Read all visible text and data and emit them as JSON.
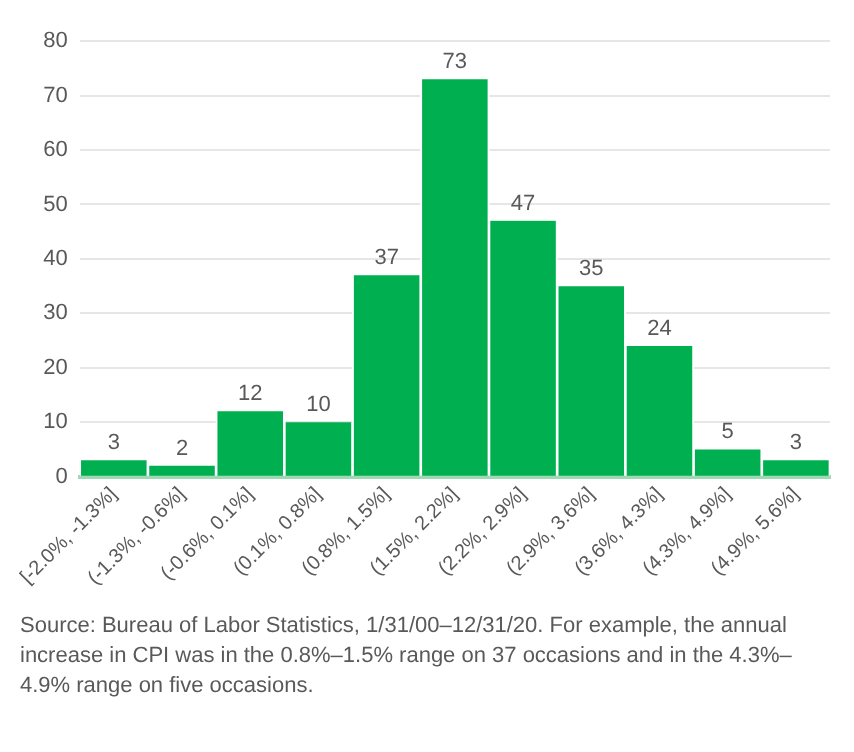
{
  "chart_data": {
    "type": "bar",
    "categories": [
      "[-2.0%, -1.3%]",
      "(-1.3%, -0.6%]",
      "(-0.6%, 0.1%]",
      "(0.1%, 0.8%]",
      "(0.8%, 1.5%]",
      "(1.5%, 2.2%]",
      "(2.2%, 2.9%]",
      "(2.9%, 3.6%]",
      "(3.6%, 4.3%]",
      "(4.3%, 4.9%]",
      "(4.9%, 5.6%]"
    ],
    "values": [
      3,
      2,
      12,
      10,
      37,
      73,
      47,
      35,
      24,
      5,
      3
    ],
    "color": "#00b050",
    "ylim": [
      0,
      80
    ],
    "yticks": [
      0,
      10,
      20,
      30,
      40,
      50,
      60,
      70,
      80
    ],
    "grid": "y",
    "data_labels": true,
    "annotations": [
      "Source: Bureau of Labor Statistics, 1/31/00–12/31/20. For example, the annual increase in CPI was in the 0.8%–1.5% range on 37 occasions and in the 4.3%–4.9% range on five occasions."
    ]
  }
}
